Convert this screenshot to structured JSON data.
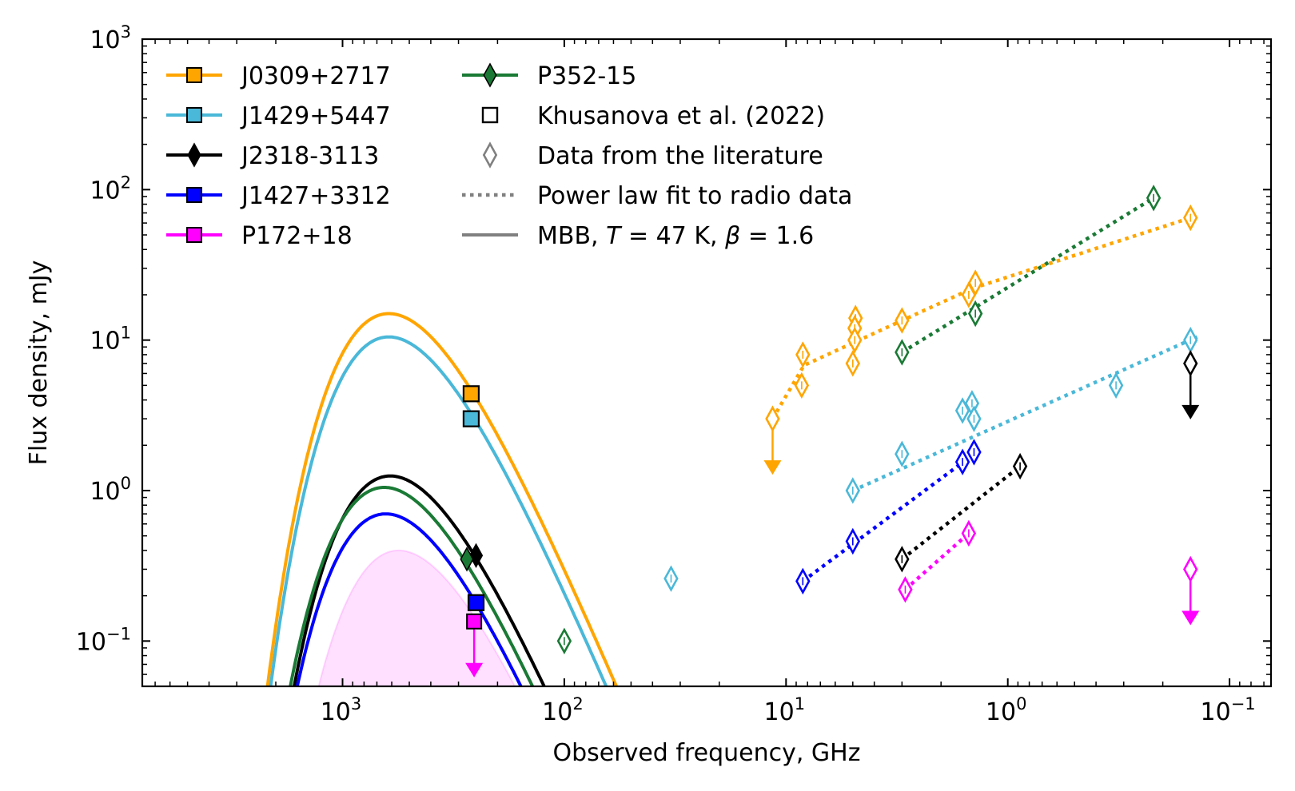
{
  "chart_data": {
    "type": "scatter",
    "title": "",
    "xlabel": "Observed frequency, GHz",
    "ylabel": "Flux density, mJy",
    "xscale": "log",
    "yscale": "log",
    "x_axis_inverted": true,
    "xlim": [
      8000,
      0.065
    ],
    "ylim": [
      0.05,
      1000
    ],
    "x_ticks": [
      {
        "value": 1000,
        "base": "10",
        "exp": "3"
      },
      {
        "value": 100,
        "base": "10",
        "exp": "2"
      },
      {
        "value": 10,
        "base": "10",
        "exp": "1"
      },
      {
        "value": 1,
        "base": "10",
        "exp": "0"
      },
      {
        "value": 0.1,
        "base": "10",
        "exp": "−1"
      }
    ],
    "y_ticks": [
      {
        "value": 1000,
        "base": "10",
        "exp": "3"
      },
      {
        "value": 100,
        "base": "10",
        "exp": "2"
      },
      {
        "value": 10,
        "base": "10",
        "exp": "1"
      },
      {
        "value": 1,
        "base": "10",
        "exp": "0"
      },
      {
        "value": 0.1,
        "base": "10",
        "exp": "−1"
      }
    ],
    "legend_position": "top-left",
    "legend": {
      "sources": [
        {
          "name": "J0309+2717",
          "color": "#ffa500",
          "marker": "square"
        },
        {
          "name": "J1429+5447",
          "color": "#4ab8d8",
          "marker": "square"
        },
        {
          "name": "J2318-3113",
          "color": "#000000",
          "marker": "diamond"
        },
        {
          "name": "J1427+3312",
          "color": "#0000ff",
          "marker": "square"
        },
        {
          "name": "P172+18",
          "color": "#ff00ff",
          "marker": "square"
        },
        {
          "name": "P352-15",
          "color": "#1a7a35",
          "marker": "diamond"
        }
      ],
      "khusanova": "Khusanova et al. (2022)",
      "literature": "Data from the literature",
      "powerlaw": "Power law fit to radio data",
      "mbb_prefix": "MBB, ",
      "mbb_T": "T",
      "mbb_T_value": " = 47 K, ",
      "mbb_beta": "β",
      "mbb_beta_value": " = 1.6"
    },
    "series": [
      {
        "name": "J0309+2717",
        "color": "#ffa500",
        "mbb_peak_mjy": 15,
        "peak_ghz": 620,
        "khusanova": [
          {
            "x": 263,
            "y": 4.4
          }
        ],
        "literature": [
          {
            "x": 0.15,
            "y": 65
          },
          {
            "x": 1.4,
            "y": 24
          },
          {
            "x": 1.5,
            "y": 20
          },
          {
            "x": 3.0,
            "y": 13.5
          },
          {
            "x": 4.86,
            "y": 14
          },
          {
            "x": 4.9,
            "y": 12
          },
          {
            "x": 4.9,
            "y": 10
          },
          {
            "x": 5.0,
            "y": 7
          },
          {
            "x": 8.4,
            "y": 8
          },
          {
            "x": 8.5,
            "y": 5
          }
        ],
        "upper_limits": [
          {
            "x": 11.5,
            "y": 3.0
          }
        ],
        "powerlaw": [
          {
            "x": 11.5,
            "y": 3.0
          },
          {
            "x": 8.3,
            "y": 6.8
          },
          {
            "x": 1.45,
            "y": 22
          },
          {
            "x": 0.15,
            "y": 65
          }
        ]
      },
      {
        "name": "J1429+5447",
        "color": "#4ab8d8",
        "mbb_peak_mjy": 10.5,
        "peak_ghz": 620,
        "khusanova": [
          {
            "x": 263,
            "y": 3.0
          }
        ],
        "literature": [
          {
            "x": 33,
            "y": 0.26
          },
          {
            "x": 5.0,
            "y": 1.0
          },
          {
            "x": 3.0,
            "y": 1.75
          },
          {
            "x": 1.6,
            "y": 3.4
          },
          {
            "x": 1.45,
            "y": 3.8
          },
          {
            "x": 1.42,
            "y": 3.0
          },
          {
            "x": 0.325,
            "y": 5.0
          },
          {
            "x": 0.15,
            "y": 10
          }
        ],
        "upper_limits": [],
        "powerlaw": [
          {
            "x": 5.0,
            "y": 1.0
          },
          {
            "x": 0.14,
            "y": 10.5
          }
        ]
      },
      {
        "name": "J2318-3113",
        "color": "#000000",
        "mbb_peak_mjy": 1.25,
        "peak_ghz": 610,
        "khusanova": [],
        "literature": [
          {
            "x": 250,
            "y": 0.37
          },
          {
            "x": 3.0,
            "y": 0.35
          },
          {
            "x": 0.88,
            "y": 1.45
          }
        ],
        "upper_limits": [
          {
            "x": 0.15,
            "y": 7.0
          }
        ],
        "powerlaw": [
          {
            "x": 3.0,
            "y": 0.35
          },
          {
            "x": 0.88,
            "y": 1.45
          }
        ]
      },
      {
        "name": "J1427+3312",
        "color": "#0000ff",
        "mbb_peak_mjy": 0.7,
        "peak_ghz": 640,
        "khusanova": [
          {
            "x": 250,
            "y": 0.18
          }
        ],
        "literature": [
          {
            "x": 8.4,
            "y": 0.25
          },
          {
            "x": 5.0,
            "y": 0.46
          },
          {
            "x": 1.6,
            "y": 1.55
          },
          {
            "x": 1.42,
            "y": 1.8
          }
        ],
        "upper_limits": [],
        "powerlaw": [
          {
            "x": 8.4,
            "y": 0.25
          },
          {
            "x": 1.42,
            "y": 1.75
          }
        ]
      },
      {
        "name": "P172+18",
        "color": "#ff00ff",
        "mbb_peak_mjy": 0.4,
        "peak_ghz": 560,
        "khusanova": [],
        "literature": [
          {
            "x": 2.9,
            "y": 0.22
          },
          {
            "x": 1.5,
            "y": 0.52
          }
        ],
        "upper_limits": [
          {
            "x": 255,
            "y": 0.135
          },
          {
            "x": 0.15,
            "y": 0.3
          }
        ],
        "powerlaw": [
          {
            "x": 2.9,
            "y": 0.22
          },
          {
            "x": 1.5,
            "y": 0.52
          }
        ]
      },
      {
        "name": "P352-15",
        "color": "#1a7a35",
        "mbb_peak_mjy": 1.05,
        "peak_ghz": 650,
        "khusanova": [],
        "literature": [
          {
            "x": 275,
            "y": 0.35
          },
          {
            "x": 100,
            "y": 0.1
          },
          {
            "x": 3.0,
            "y": 8.3
          },
          {
            "x": 1.4,
            "y": 15
          },
          {
            "x": 0.22,
            "y": 88
          }
        ],
        "upper_limits": [],
        "powerlaw": [
          {
            "x": 3.0,
            "y": 8.3
          },
          {
            "x": 0.22,
            "y": 88
          }
        ]
      }
    ]
  }
}
